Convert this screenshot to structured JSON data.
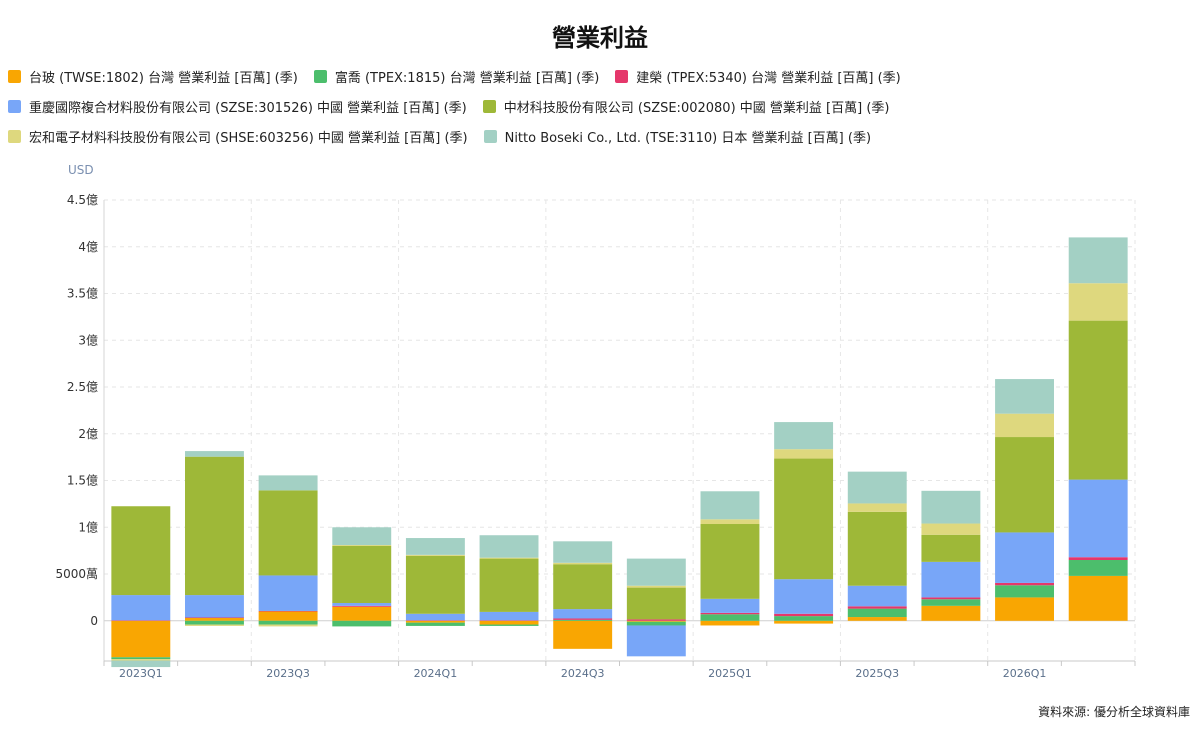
{
  "title": "營業利益",
  "unit": "USD",
  "source": "資料來源: 優分析全球資料庫",
  "chart_data": {
    "type": "bar",
    "stacked": true,
    "title": "營業利益",
    "categories": [
      "2023Q1",
      "2023Q2",
      "2023Q3",
      "2023Q4",
      "2024Q1",
      "2024Q2",
      "2024Q3",
      "2024Q4",
      "2025Q1",
      "2025Q2",
      "2025Q3",
      "2025Q4",
      "2026Q1",
      "2026Q2"
    ],
    "x_tick_labels": [
      "2023Q1",
      "",
      "2023Q3",
      "",
      "2024Q1",
      "",
      "2024Q3",
      "",
      "2025Q1",
      "",
      "2025Q3",
      "",
      "2026Q1",
      ""
    ],
    "ylim": [
      -4300,
      45000
    ],
    "y_ticks": [
      0,
      5000,
      10000,
      15000,
      20000,
      25000,
      30000,
      35000,
      40000,
      45000
    ],
    "y_tick_labels": [
      "0",
      "5000萬",
      "1億",
      "1.5億",
      "2億",
      "2.5億",
      "3億",
      "3.5億",
      "4億",
      "4.5億"
    ],
    "grid": true,
    "legend_position": "top",
    "series": [
      {
        "name": "台玻 (TWSE:1802) 台灣 營業利益 [百萬] (季)",
        "color": "#F9A602",
        "values": [
          -3900,
          300,
          1000,
          1500,
          -200,
          -400,
          -3000,
          -100,
          -500,
          -300,
          400,
          1600,
          2500,
          4800
        ]
      },
      {
        "name": "富喬 (TPEX:1815) 台灣 營業利益 [百萬] (季)",
        "color": "#4CBE6C",
        "values": [
          -200,
          -400,
          -400,
          -600,
          -350,
          -150,
          100,
          -400,
          700,
          500,
          900,
          700,
          1300,
          1700
        ]
      },
      {
        "name": "建榮 (TPEX:5340) 台灣 營業利益 [百萬] (季)",
        "color": "#E5376B",
        "values": [
          50,
          50,
          50,
          100,
          50,
          50,
          150,
          150,
          150,
          250,
          250,
          200,
          250,
          300
        ]
      },
      {
        "name": "重慶國際複合材料股份有限公司 (SZSE:301526) 中國 營業利益 [百萬] (季)",
        "color": "#78A6F8",
        "values": [
          2700,
          2400,
          3800,
          300,
          700,
          900,
          1000,
          -3300,
          1500,
          3700,
          2200,
          3800,
          5400,
          8300
        ]
      },
      {
        "name": "中材科技股份有限公司 (SZSE:002080) 中國 營業利益 [百萬] (季)",
        "color": "#9EB838",
        "values": [
          9500,
          14800,
          9100,
          6100,
          6200,
          5700,
          4800,
          3400,
          8000,
          12900,
          7900,
          2900,
          10200,
          17000
        ]
      },
      {
        "name": "宏和電子材料科技股份有限公司 (SHSE:603256) 中國 營業利益 [百萬] (季)",
        "color": "#DED87E",
        "values": [
          -150,
          -150,
          -200,
          100,
          100,
          100,
          150,
          200,
          500,
          1000,
          900,
          1200,
          2500,
          4000
        ]
      },
      {
        "name": "Nitto Boseki Co., Ltd. (TSE:3110) 日本 營業利益 [百萬] (季)",
        "color": "#A3D0C4",
        "values": [
          -700,
          600,
          1600,
          1900,
          1800,
          2400,
          2300,
          2900,
          3000,
          2900,
          3400,
          3500,
          3700,
          4900
        ]
      }
    ]
  }
}
